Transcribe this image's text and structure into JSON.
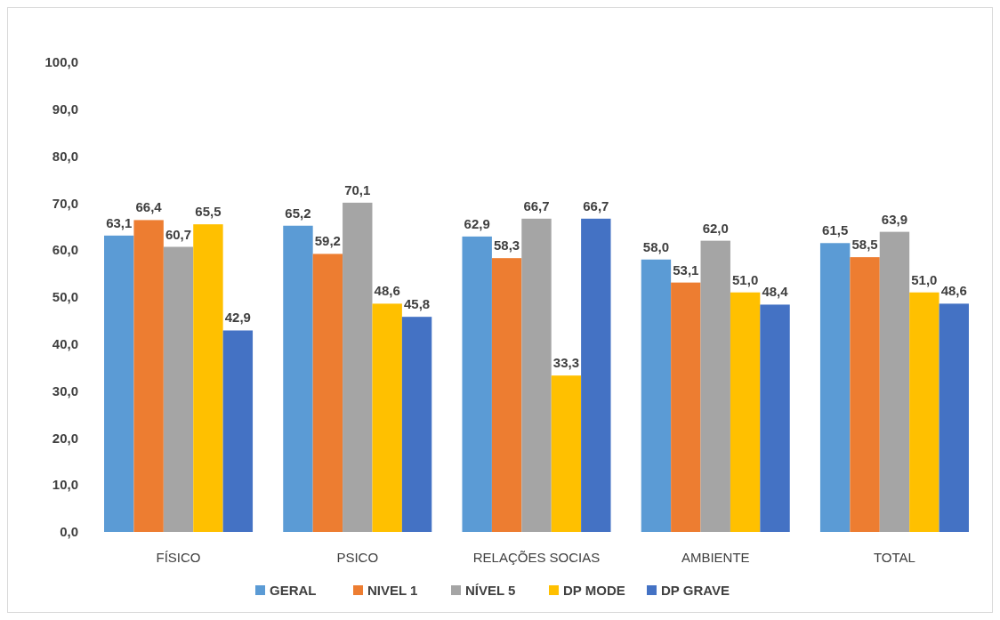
{
  "chart_data": {
    "type": "bar",
    "categories": [
      "FÍSICO",
      "PSICO",
      "RELAÇÕES SOCIAS",
      "AMBIENTE",
      "TOTAL"
    ],
    "series": [
      {
        "name": "GERAL",
        "color": "#5b9bd5",
        "values": [
          63.1,
          65.2,
          62.9,
          58.0,
          61.5
        ],
        "value_labels": [
          "63,1",
          "65,2",
          "62,9",
          "58,0",
          "61,5"
        ]
      },
      {
        "name": "NIVEL 1",
        "color": "#ed7d31",
        "values": [
          66.4,
          59.2,
          58.3,
          53.1,
          58.5
        ],
        "value_labels": [
          "66,4",
          "59,2",
          "58,3",
          "53,1",
          "58,5"
        ]
      },
      {
        "name": "NÍVEL 5",
        "color": "#a5a5a5",
        "values": [
          60.7,
          70.1,
          66.7,
          62.0,
          63.9
        ],
        "value_labels": [
          "60,7",
          "70,1",
          "66,7",
          "62,0",
          "63,9"
        ]
      },
      {
        "name": "DP MODE",
        "color": "#ffc000",
        "values": [
          65.5,
          48.6,
          33.3,
          51.0,
          51.0
        ],
        "value_labels": [
          "65,5",
          "48,6",
          "33,3",
          "51,0",
          "51,0"
        ]
      },
      {
        "name": "DP GRAVE",
        "color": "#4472c4",
        "values": [
          42.9,
          45.8,
          66.7,
          48.4,
          48.6
        ],
        "value_labels": [
          "42,9",
          "45,8",
          "66,7",
          "48,4",
          "48,6"
        ]
      }
    ],
    "ylim": [
      0,
      100
    ],
    "yticks": [
      {
        "value": 0,
        "label": "0,0"
      },
      {
        "value": 10,
        "label": "10,0"
      },
      {
        "value": 20,
        "label": "20,0"
      },
      {
        "value": 30,
        "label": "30,0"
      },
      {
        "value": 40,
        "label": "40,0"
      },
      {
        "value": 50,
        "label": "50,0"
      },
      {
        "value": 60,
        "label": "60,0"
      },
      {
        "value": 70,
        "label": "70,0"
      },
      {
        "value": 80,
        "label": "80,0"
      },
      {
        "value": 90,
        "label": "90,0"
      },
      {
        "value": 100,
        "label": "100,0"
      }
    ],
    "grid": false,
    "legend": "bottom"
  }
}
